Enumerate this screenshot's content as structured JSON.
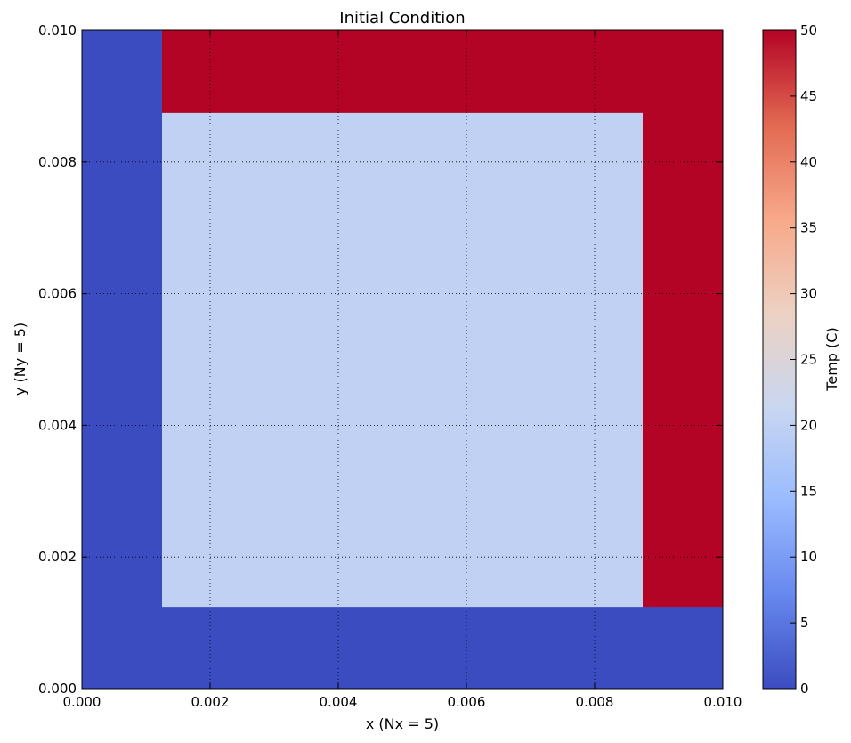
{
  "chart_data": {
    "type": "heatmap",
    "title": "Initial Condition",
    "xlabel": "x (Nx = 5)",
    "ylabel": "y (Ny = 5)",
    "xlim": [
      0.0,
      0.01
    ],
    "ylim": [
      0.0,
      0.01
    ],
    "xticks": [
      "0.000",
      "0.002",
      "0.004",
      "0.006",
      "0.008",
      "0.010"
    ],
    "yticks": [
      "0.000",
      "0.002",
      "0.004",
      "0.006",
      "0.008",
      "0.010"
    ],
    "xtick_values": [
      0.0,
      0.002,
      0.004,
      0.006,
      0.008,
      0.01
    ],
    "ytick_values": [
      0.0,
      0.002,
      0.004,
      0.006,
      0.008,
      0.01
    ],
    "grid": true,
    "cell_edges_x": [
      0.0,
      0.00125,
      0.00875,
      0.01
    ],
    "cell_edges_y": [
      0.0,
      0.00125,
      0.00875,
      0.01
    ],
    "values": [
      [
        0,
        0,
        0
      ],
      [
        0,
        20,
        50
      ],
      [
        0,
        50,
        50
      ]
    ],
    "colorbar": {
      "label": "Temp (C)",
      "range": [
        0,
        50
      ],
      "ticks": [
        "0",
        "5",
        "10",
        "15",
        "20",
        "25",
        "30",
        "35",
        "40",
        "45",
        "50"
      ],
      "tick_values": [
        0,
        5,
        10,
        15,
        20,
        25,
        30,
        35,
        40,
        45,
        50
      ],
      "colormap": "coolwarm",
      "stops": [
        "#3b4cc0",
        "#6788ee",
        "#9abbff",
        "#c9d7f0",
        "#edd1c2",
        "#f7a889",
        "#e26952",
        "#b40426"
      ]
    }
  }
}
